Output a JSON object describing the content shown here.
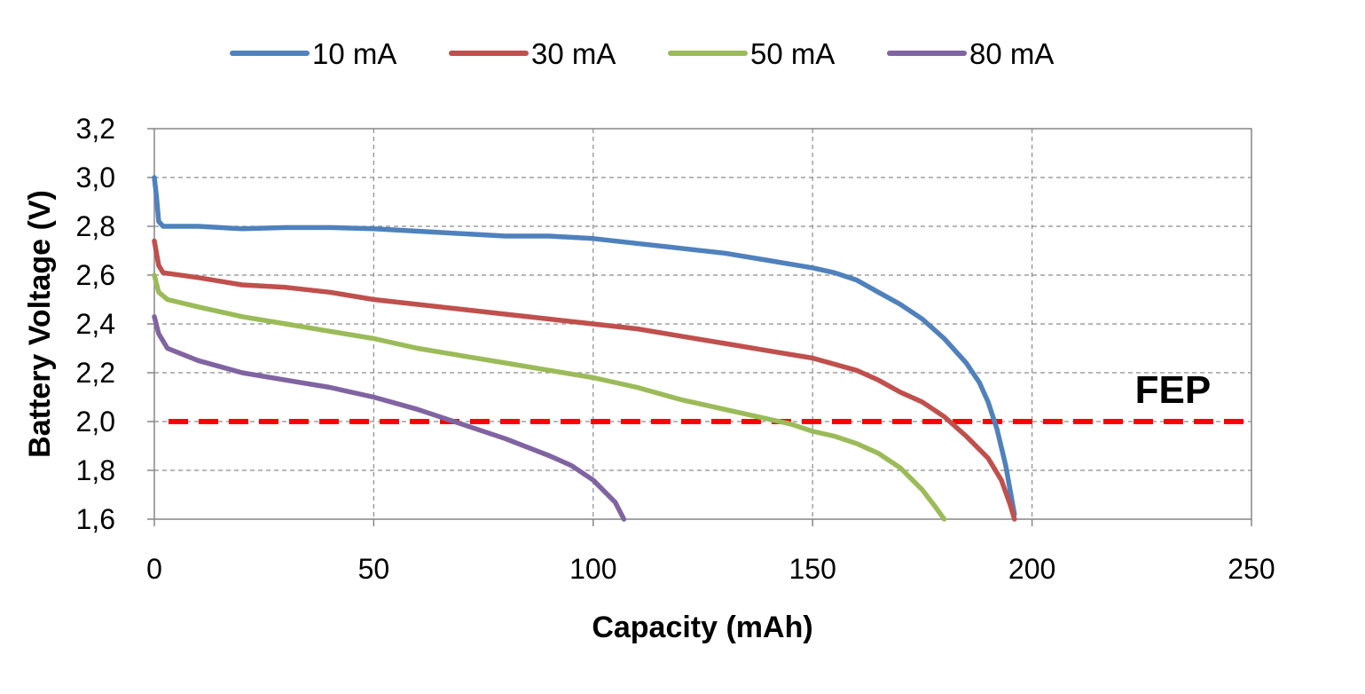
{
  "chart_data": {
    "type": "line",
    "title": "",
    "xlabel": "Capacity (mAh)",
    "ylabel": "Battery Voltage (V)",
    "xlim": [
      0,
      250
    ],
    "ylim": [
      1.6,
      3.2
    ],
    "x_ticks": [
      "0",
      "50",
      "100",
      "150",
      "200",
      "250"
    ],
    "y_ticks": [
      "1,6",
      "1,8",
      "2,0",
      "2,2",
      "2,4",
      "2,6",
      "2,8",
      "3,0",
      "3,2"
    ],
    "grid": true,
    "legend_position": "top",
    "series": [
      {
        "name": "10 mA",
        "color": "#4f81bd",
        "points": [
          [
            0,
            3.0
          ],
          [
            0.5,
            2.92
          ],
          [
            1,
            2.82
          ],
          [
            2,
            2.8
          ],
          [
            10,
            2.8
          ],
          [
            20,
            2.79
          ],
          [
            30,
            2.795
          ],
          [
            40,
            2.795
          ],
          [
            50,
            2.79
          ],
          [
            60,
            2.78
          ],
          [
            70,
            2.77
          ],
          [
            80,
            2.76
          ],
          [
            90,
            2.76
          ],
          [
            100,
            2.75
          ],
          [
            110,
            2.73
          ],
          [
            120,
            2.71
          ],
          [
            130,
            2.69
          ],
          [
            140,
            2.66
          ],
          [
            150,
            2.63
          ],
          [
            155,
            2.61
          ],
          [
            160,
            2.58
          ],
          [
            165,
            2.53
          ],
          [
            170,
            2.48
          ],
          [
            175,
            2.42
          ],
          [
            180,
            2.34
          ],
          [
            185,
            2.24
          ],
          [
            188,
            2.16
          ],
          [
            190,
            2.08
          ],
          [
            192,
            1.97
          ],
          [
            194,
            1.82
          ],
          [
            196,
            1.62
          ]
        ]
      },
      {
        "name": "30 mA",
        "color": "#c0504d",
        "points": [
          [
            0,
            2.74
          ],
          [
            1,
            2.64
          ],
          [
            2,
            2.61
          ],
          [
            10,
            2.59
          ],
          [
            20,
            2.56
          ],
          [
            30,
            2.55
          ],
          [
            40,
            2.53
          ],
          [
            50,
            2.5
          ],
          [
            60,
            2.48
          ],
          [
            70,
            2.46
          ],
          [
            80,
            2.44
          ],
          [
            90,
            2.42
          ],
          [
            100,
            2.4
          ],
          [
            110,
            2.38
          ],
          [
            120,
            2.35
          ],
          [
            130,
            2.32
          ],
          [
            140,
            2.29
          ],
          [
            150,
            2.26
          ],
          [
            160,
            2.21
          ],
          [
            165,
            2.17
          ],
          [
            170,
            2.12
          ],
          [
            175,
            2.08
          ],
          [
            180,
            2.02
          ],
          [
            185,
            1.94
          ],
          [
            190,
            1.85
          ],
          [
            193,
            1.76
          ],
          [
            195,
            1.66
          ],
          [
            196,
            1.6
          ]
        ]
      },
      {
        "name": "50 mA",
        "color": "#9bbb59",
        "points": [
          [
            0,
            2.6
          ],
          [
            1,
            2.53
          ],
          [
            3,
            2.5
          ],
          [
            10,
            2.47
          ],
          [
            20,
            2.43
          ],
          [
            30,
            2.4
          ],
          [
            40,
            2.37
          ],
          [
            50,
            2.34
          ],
          [
            60,
            2.3
          ],
          [
            70,
            2.27
          ],
          [
            80,
            2.24
          ],
          [
            90,
            2.21
          ],
          [
            100,
            2.18
          ],
          [
            110,
            2.14
          ],
          [
            120,
            2.09
          ],
          [
            130,
            2.05
          ],
          [
            140,
            2.01
          ],
          [
            145,
            1.99
          ],
          [
            150,
            1.96
          ],
          [
            155,
            1.94
          ],
          [
            160,
            1.91
          ],
          [
            165,
            1.87
          ],
          [
            170,
            1.81
          ],
          [
            175,
            1.72
          ],
          [
            178,
            1.65
          ],
          [
            180,
            1.6
          ]
        ]
      },
      {
        "name": "80 mA",
        "color": "#8064a2",
        "points": [
          [
            0,
            2.43
          ],
          [
            1,
            2.36
          ],
          [
            3,
            2.3
          ],
          [
            10,
            2.25
          ],
          [
            20,
            2.2
          ],
          [
            30,
            2.17
          ],
          [
            40,
            2.14
          ],
          [
            50,
            2.1
          ],
          [
            60,
            2.05
          ],
          [
            70,
            1.99
          ],
          [
            80,
            1.93
          ],
          [
            90,
            1.86
          ],
          [
            95,
            1.82
          ],
          [
            100,
            1.76
          ],
          [
            105,
            1.67
          ],
          [
            107,
            1.6
          ]
        ]
      }
    ],
    "reference_line": {
      "y": 2.0,
      "color": "#ff0000",
      "style": "dashed"
    },
    "annotations": [
      {
        "text": "FEP",
        "x": 223,
        "y": 2.15
      }
    ]
  }
}
